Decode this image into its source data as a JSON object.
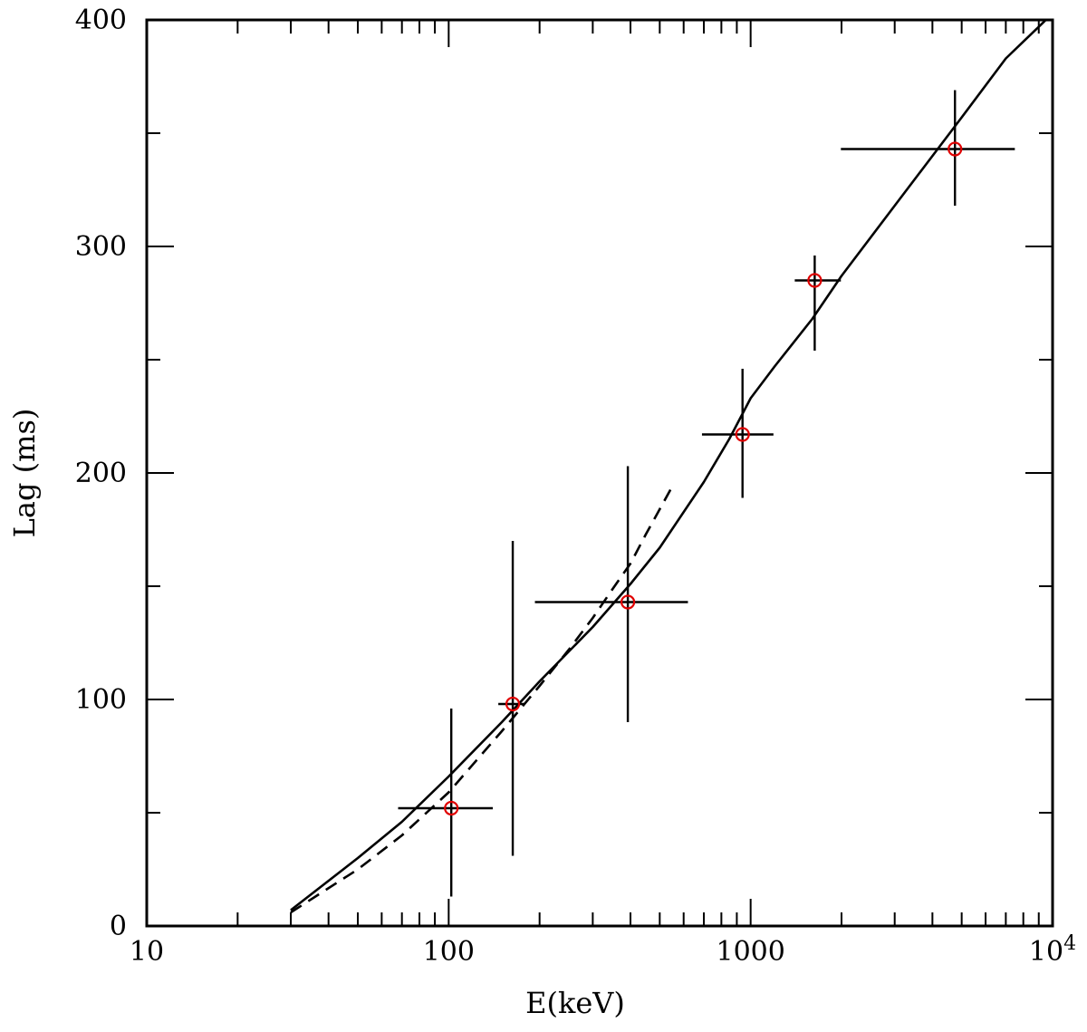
{
  "chart_data": {
    "type": "scatter",
    "xlabel": "E(keV)",
    "ylabel": "Lag (ms)",
    "xscale": "log",
    "xlim": [
      10,
      10000
    ],
    "ylim": [
      0,
      400
    ],
    "grid": false,
    "legend": "none",
    "x_ticks": [
      {
        "value": 10,
        "label": "10"
      },
      {
        "value": 100,
        "label": "100"
      },
      {
        "value": 1000,
        "label": "1000"
      },
      {
        "value": 10000,
        "label": "10",
        "sup": "4"
      }
    ],
    "y_ticks": [
      {
        "value": 0,
        "label": "0"
      },
      {
        "value": 100,
        "label": "100"
      },
      {
        "value": 200,
        "label": "200"
      },
      {
        "value": 300,
        "label": "300"
      },
      {
        "value": 400,
        "label": "400"
      }
    ],
    "points": [
      {
        "x": 102,
        "y": 52,
        "xerr": [
          68,
          140
        ],
        "yerr": [
          13,
          96
        ]
      },
      {
        "x": 163,
        "y": 98,
        "xerr": [
          146,
          178
        ],
        "yerr": [
          31,
          170
        ]
      },
      {
        "x": 392,
        "y": 143,
        "xerr": [
          193,
          620
        ],
        "yerr": [
          90,
          203
        ]
      },
      {
        "x": 940,
        "y": 217,
        "xerr": [
          690,
          1190
        ],
        "yerr": [
          189,
          246
        ]
      },
      {
        "x": 1630,
        "y": 285,
        "xerr": [
          1400,
          1990
        ],
        "yerr": [
          254,
          296
        ]
      },
      {
        "x": 4750,
        "y": 343,
        "xerr": [
          1990,
          7500
        ],
        "yerr": [
          318,
          369
        ]
      }
    ],
    "point_color": "#e00000",
    "line_color": "#000000",
    "curves": [
      {
        "style": "solid",
        "points": [
          [
            30,
            7
          ],
          [
            50,
            30
          ],
          [
            70,
            46
          ],
          [
            100,
            66
          ],
          [
            150,
            90
          ],
          [
            200,
            108
          ],
          [
            300,
            132
          ],
          [
            400,
            151
          ],
          [
            500,
            167
          ],
          [
            700,
            196
          ],
          [
            850,
            215
          ],
          [
            1000,
            233
          ],
          [
            1200,
            247
          ],
          [
            1600,
            268
          ],
          [
            2000,
            287
          ],
          [
            3000,
            318
          ],
          [
            5000,
            357
          ],
          [
            7000,
            383
          ],
          [
            9500,
            400
          ]
        ]
      },
      {
        "style": "dashed",
        "points": [
          [
            30,
            6
          ],
          [
            50,
            25
          ],
          [
            70,
            40
          ],
          [
            100,
            59
          ],
          [
            150,
            86
          ],
          [
            200,
            106
          ],
          [
            250,
            122
          ],
          [
            300,
            136
          ],
          [
            350,
            149
          ],
          [
            400,
            160
          ],
          [
            450,
            173
          ],
          [
            500,
            184
          ],
          [
            550,
            194
          ]
        ]
      }
    ]
  }
}
